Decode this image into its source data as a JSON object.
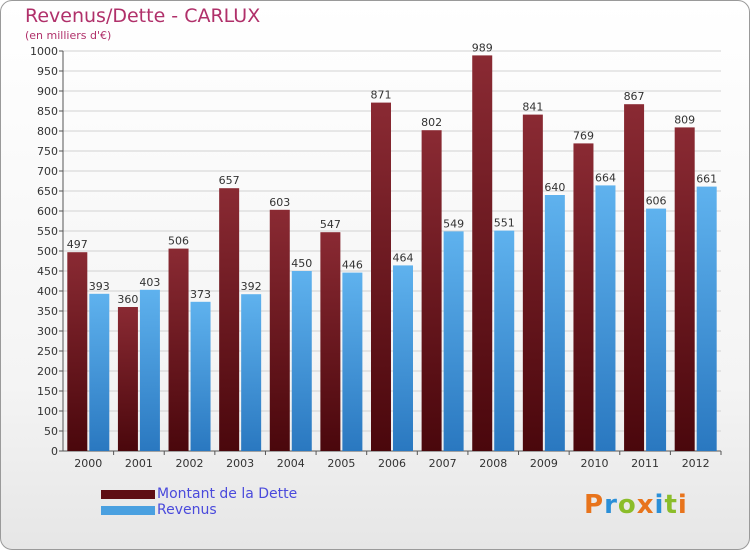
{
  "chart_data": {
    "type": "bar",
    "title": "Revenus/Dette - CARLUX",
    "subtitle": "(en milliers d'€)",
    "categories": [
      "2000",
      "2001",
      "2002",
      "2003",
      "2004",
      "2005",
      "2006",
      "2007",
      "2008",
      "2009",
      "2010",
      "2011",
      "2012"
    ],
    "series": [
      {
        "name": "Montant de la Dette",
        "color": "#7a1f26",
        "values": [
          497,
          360,
          506,
          657,
          603,
          547,
          871,
          802,
          989,
          841,
          769,
          867,
          809
        ]
      },
      {
        "name": "Revenus",
        "color": "#4aa0e0",
        "values": [
          393,
          403,
          373,
          392,
          450,
          446,
          464,
          549,
          551,
          640,
          664,
          606,
          661
        ]
      }
    ],
    "ylim": [
      0,
      1000
    ],
    "ytick_step": 50,
    "grid": true,
    "legend": "bottom-left"
  },
  "logo": {
    "text": "Proxiti"
  }
}
